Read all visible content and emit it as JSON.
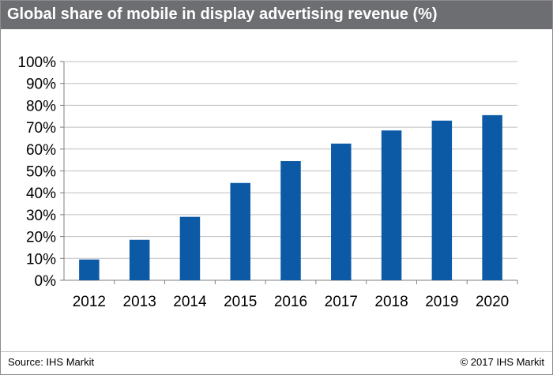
{
  "header": {
    "title": "Global share of mobile in display advertising revenue (%)"
  },
  "footer": {
    "source": "Source: IHS Markit",
    "copyright": "© 2017 IHS Markit"
  },
  "colors": {
    "bar": "#0c5aa6",
    "title_bg": "#6d6e71",
    "grid": "#bfbfbf",
    "axis": "#7f7f7f"
  },
  "chart_data": {
    "type": "bar",
    "title": "Global share of mobile in display advertising revenue (%)",
    "categories": [
      "2012",
      "2013",
      "2014",
      "2015",
      "2016",
      "2017",
      "2018",
      "2019",
      "2020"
    ],
    "values": [
      9.5,
      18.5,
      29,
      44.5,
      54.5,
      62.5,
      68.5,
      73,
      75.5
    ],
    "ylim": [
      0,
      100
    ],
    "yticks": [
      0,
      10,
      20,
      30,
      40,
      50,
      60,
      70,
      80,
      90,
      100
    ],
    "ytick_labels": [
      "0%",
      "10%",
      "20%",
      "30%",
      "40%",
      "50%",
      "60%",
      "70%",
      "80%",
      "90%",
      "100%"
    ],
    "grid": true,
    "legend": "none"
  }
}
